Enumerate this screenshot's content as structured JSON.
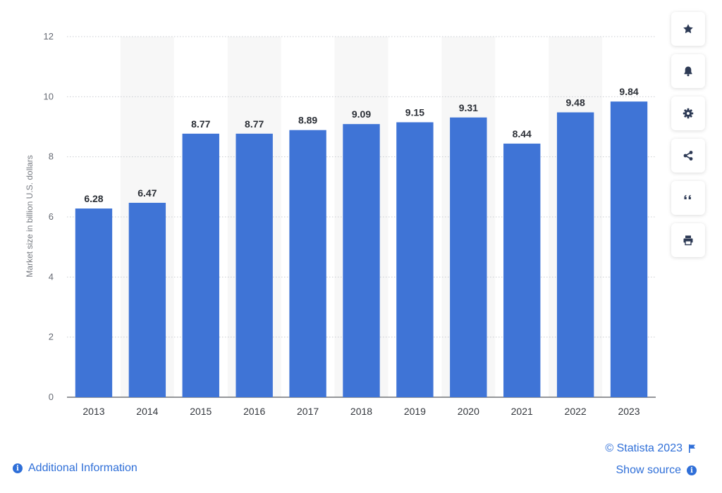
{
  "chart_data": {
    "type": "bar",
    "categories": [
      "2013",
      "2014",
      "2015",
      "2016",
      "2017",
      "2018",
      "2019",
      "2020",
      "2021",
      "2022",
      "2023"
    ],
    "values": [
      6.28,
      6.47,
      8.77,
      8.77,
      8.89,
      9.09,
      9.15,
      9.31,
      8.44,
      9.48,
      9.84
    ],
    "value_labels": [
      "6.28",
      "6.47",
      "8.77",
      "8.77",
      "8.89",
      "9.09",
      "9.15",
      "9.31",
      "8.44",
      "9.48",
      "9.84"
    ],
    "ylabel": "Market size in billion U.S. dollars",
    "xlabel": "",
    "ylim": [
      0,
      12
    ],
    "yticks": [
      0,
      2,
      4,
      6,
      8,
      10,
      12
    ],
    "grid": "horizontal dotted",
    "bar_color": "#3f74d6",
    "band_color": "#f7f7f7"
  },
  "toolbar": {
    "buttons": [
      {
        "name": "favorite",
        "icon": "star-icon"
      },
      {
        "name": "notification",
        "icon": "bell-icon"
      },
      {
        "name": "settings",
        "icon": "gear-icon"
      },
      {
        "name": "share",
        "icon": "share-icon"
      },
      {
        "name": "cite",
        "icon": "quote-icon"
      },
      {
        "name": "print",
        "icon": "printer-icon"
      }
    ]
  },
  "footer": {
    "additional_info": "Additional Information",
    "copyright": "© Statista 2023",
    "show_source": "Show source",
    "link_color": "#2f6fd8"
  }
}
